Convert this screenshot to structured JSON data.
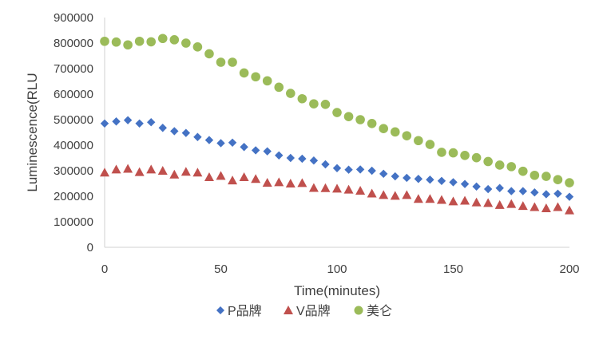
{
  "chart_data": {
    "type": "scatter",
    "title": "",
    "xlabel": "Time(minutes)",
    "ylabel": "Luminescence(RLU",
    "xlim": [
      0,
      200
    ],
    "ylim": [
      0,
      900000
    ],
    "x_ticks": [
      "0",
      "50",
      "100",
      "150",
      "200"
    ],
    "y_ticks": [
      "0",
      "100000",
      "200000",
      "300000",
      "400000",
      "500000",
      "600000",
      "700000",
      "800000",
      "900000"
    ],
    "grid": false,
    "legend_position": "bottom",
    "x": [
      0,
      5,
      10,
      15,
      20,
      25,
      30,
      35,
      40,
      45,
      50,
      55,
      60,
      65,
      70,
      75,
      80,
      85,
      90,
      95,
      100,
      105,
      110,
      115,
      120,
      125,
      130,
      135,
      140,
      145,
      150,
      155,
      160,
      165,
      170,
      175,
      180,
      185,
      190,
      195,
      200
    ],
    "series": [
      {
        "name": "P品牌",
        "marker": "diamond",
        "color": "#4472C4",
        "values": [
          485000,
          493000,
          498000,
          485000,
          490000,
          468000,
          455000,
          448000,
          432000,
          420000,
          408000,
          410000,
          393000,
          380000,
          376000,
          360000,
          350000,
          347000,
          340000,
          325000,
          310000,
          304000,
          305000,
          300000,
          288000,
          278000,
          272000,
          268000,
          265000,
          260000,
          255000,
          248000,
          238000,
          228000,
          232000,
          220000,
          220000,
          215000,
          208000,
          210000,
          198000
        ]
      },
      {
        "name": "V品牌",
        "marker": "triangle",
        "color": "#C0504D",
        "values": [
          293000,
          305000,
          308000,
          295000,
          305000,
          300000,
          285000,
          296000,
          293000,
          275000,
          280000,
          262000,
          275000,
          268000,
          253000,
          255000,
          250000,
          252000,
          233000,
          232000,
          230000,
          226000,
          222000,
          211000,
          205000,
          202000,
          205000,
          190000,
          190000,
          186000,
          180000,
          183000,
          176000,
          174000,
          166000,
          170000,
          162000,
          158000,
          153000,
          158000,
          145000
        ]
      },
      {
        "name": "美仑",
        "marker": "circle",
        "color": "#9BBB59",
        "values": [
          807000,
          804000,
          793000,
          807000,
          805000,
          818000,
          813000,
          800000,
          785000,
          758000,
          725000,
          725000,
          683000,
          668000,
          652000,
          627000,
          603000,
          582000,
          562000,
          560000,
          528000,
          512000,
          500000,
          485000,
          465000,
          452000,
          437000,
          418000,
          403000,
          372000,
          370000,
          360000,
          351000,
          336000,
          322000,
          316000,
          298000,
          282000,
          278000,
          265000,
          253000
        ]
      }
    ]
  }
}
